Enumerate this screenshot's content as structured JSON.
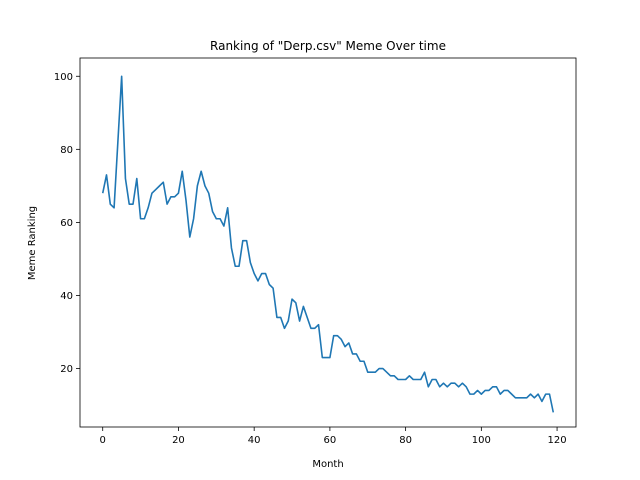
{
  "chart_data": {
    "type": "line",
    "title": "Ranking of \"Derp.csv\" Meme Over time",
    "xlabel": "Month",
    "ylabel": "Meme Ranking",
    "xlim": [
      -6,
      125
    ],
    "ylim": [
      4,
      105
    ],
    "xticks": [
      0,
      20,
      40,
      60,
      80,
      100,
      120
    ],
    "yticks": [
      20,
      40,
      60,
      80,
      100
    ],
    "grid": false,
    "series": [
      {
        "color": "#1f77b4",
        "x": [
          0,
          1,
          2,
          3,
          4,
          5,
          6,
          7,
          8,
          9,
          10,
          11,
          12,
          13,
          14,
          15,
          16,
          17,
          18,
          19,
          20,
          21,
          22,
          23,
          24,
          25,
          26,
          27,
          28,
          29,
          30,
          31,
          32,
          33,
          34,
          35,
          36,
          37,
          38,
          39,
          40,
          41,
          42,
          43,
          44,
          45,
          46,
          47,
          48,
          49,
          50,
          51,
          52,
          53,
          54,
          55,
          56,
          57,
          58,
          59,
          60,
          61,
          62,
          63,
          64,
          65,
          66,
          67,
          68,
          69,
          70,
          71,
          72,
          73,
          74,
          75,
          76,
          77,
          78,
          79,
          80,
          81,
          82,
          83,
          84,
          85,
          86,
          87,
          88,
          89,
          90,
          91,
          92,
          93,
          94,
          95,
          96,
          97,
          98,
          99,
          100,
          101,
          102,
          103,
          104,
          105,
          106,
          107,
          108,
          109,
          110,
          111,
          112,
          113,
          114,
          115,
          116,
          117,
          118,
          119
        ],
        "y": [
          68,
          73,
          65,
          64,
          82,
          100,
          72,
          65,
          65,
          72,
          61,
          61,
          64,
          68,
          69,
          70,
          71,
          65,
          67,
          67,
          68,
          74,
          66,
          56,
          61,
          70,
          74,
          70,
          68,
          63,
          61,
          61,
          59,
          64,
          53,
          48,
          48,
          55,
          55,
          49,
          46,
          44,
          46,
          46,
          43,
          42,
          34,
          34,
          31,
          33,
          39,
          38,
          33,
          37,
          34,
          31,
          31,
          32,
          23,
          23,
          23,
          29,
          29,
          28,
          26,
          27,
          24,
          24,
          22,
          22,
          19,
          19,
          19,
          20,
          20,
          19,
          18,
          18,
          17,
          17,
          17,
          18,
          17,
          17,
          17,
          19,
          15,
          17,
          17,
          15,
          16,
          15,
          16,
          16,
          15,
          16,
          15,
          13,
          13,
          14,
          13,
          14,
          14,
          15,
          15,
          13,
          14,
          14,
          13,
          12,
          12,
          12,
          12,
          13,
          12,
          13,
          11,
          13,
          13,
          8
        ]
      }
    ]
  }
}
